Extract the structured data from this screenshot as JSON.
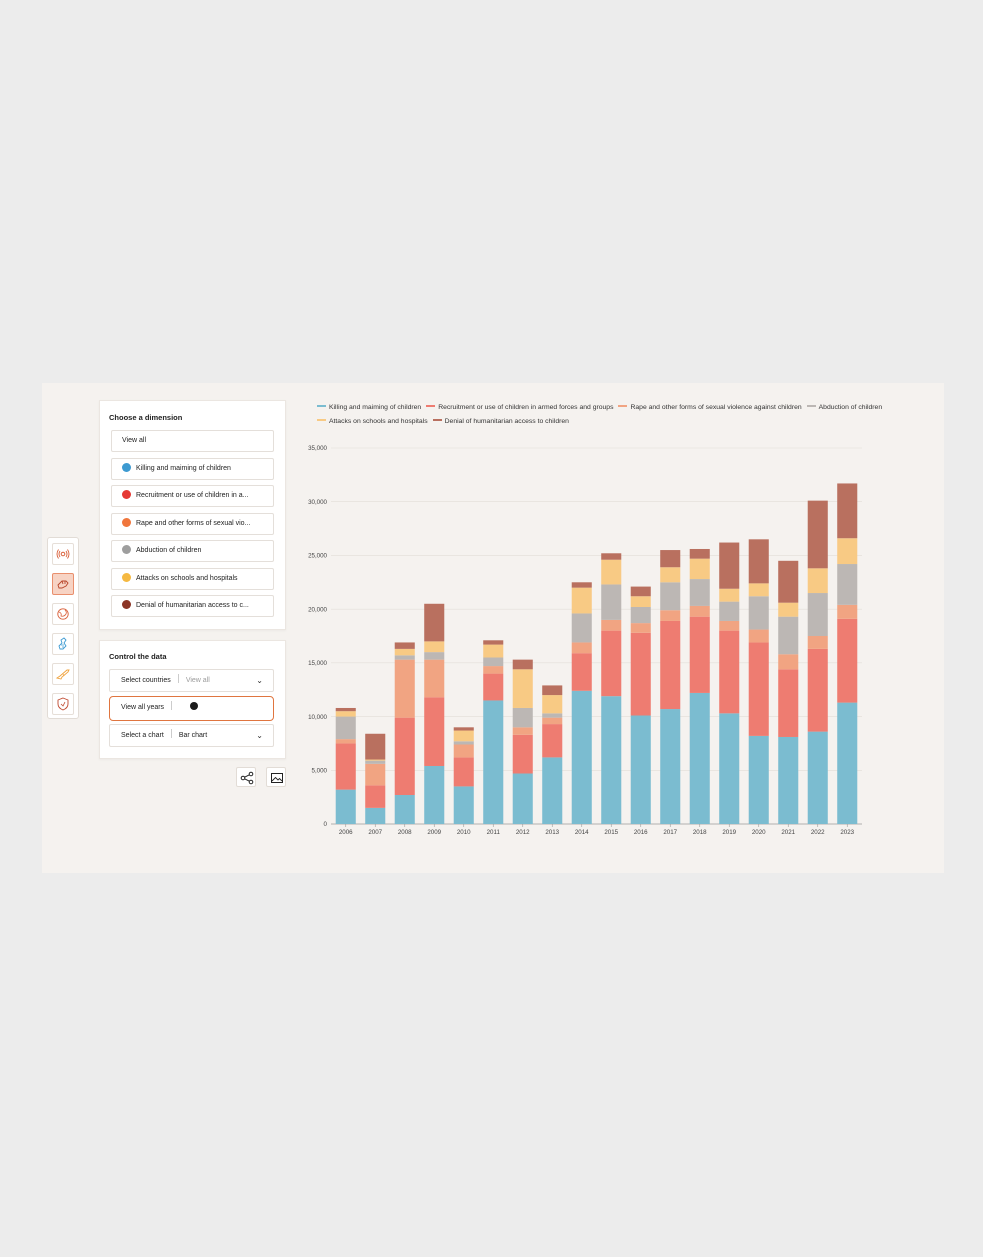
{
  "dimension_panel": {
    "title": "Choose a dimension",
    "options": [
      {
        "label": "View all",
        "color": null
      },
      {
        "label": "Killing and maiming of children",
        "color": "#3d9ad1"
      },
      {
        "label": "Recruitment or use of children in a...",
        "color": "#e53935"
      },
      {
        "label": "Rape and other forms of sexual vio...",
        "color": "#f0763c"
      },
      {
        "label": "Abduction of children",
        "color": "#9e9e9e"
      },
      {
        "label": "Attacks on schools and hospitals",
        "color": "#f5b942"
      },
      {
        "label": "Denial of humanitarian access to c...",
        "color": "#8b3526"
      }
    ]
  },
  "control_panel": {
    "title": "Control the data",
    "select_countries_label": "Select countries",
    "select_countries_value": "View all",
    "view_all_years_label": "View all years",
    "select_chart_label": "Select a chart",
    "select_chart_value": "Bar chart"
  },
  "rail_icons": [
    "signal-icon",
    "hand-icon",
    "globe-icon",
    "bandage-icon",
    "rifle-icon",
    "shield-icon"
  ],
  "chart_data": {
    "type": "bar",
    "stacked": true,
    "legend_placement": "top",
    "grid": true,
    "ylim": [
      0,
      35000
    ],
    "yticks": [
      "0",
      "5,000",
      "10,000",
      "15,000",
      "20,000",
      "25,000",
      "30,000",
      "35,000"
    ],
    "categories": [
      "2006",
      "2007",
      "2008",
      "2009",
      "2010",
      "2011",
      "2012",
      "2013",
      "2014",
      "2015",
      "2016",
      "2017",
      "2018",
      "2019",
      "2020",
      "2021",
      "2022",
      "2023"
    ],
    "series": [
      {
        "name": "Killing and maiming of children",
        "color": "#7bbcd0",
        "values": [
          3200,
          1500,
          2700,
          5400,
          3500,
          11500,
          4700,
          6200,
          12400,
          11900,
          10100,
          10700,
          12200,
          10300,
          8200,
          8100,
          8600,
          11300
        ]
      },
      {
        "name": "Recruitment or use of children in armed forces and groups",
        "color": "#ee7c71",
        "values": [
          4300,
          2100,
          7200,
          6400,
          2700,
          2500,
          3600,
          3100,
          3500,
          6100,
          7700,
          8200,
          7100,
          7700,
          8700,
          6300,
          7700,
          7800
        ]
      },
      {
        "name": "Rape and other forms of sexual violence against children",
        "color": "#f1a482",
        "values": [
          400,
          2000,
          5400,
          3500,
          1200,
          700,
          700,
          600,
          1000,
          1000,
          900,
          1000,
          1000,
          900,
          1200,
          1400,
          1200,
          1300
        ]
      },
      {
        "name": "Abduction of children",
        "color": "#bcb7b4",
        "values": [
          2100,
          300,
          400,
          700,
          300,
          800,
          1800,
          400,
          2700,
          3300,
          1500,
          2600,
          2500,
          1800,
          3100,
          3500,
          4000,
          3800
        ]
      },
      {
        "name": "Attacks on schools and hospitals",
        "color": "#f8ca84",
        "values": [
          500,
          100,
          600,
          1000,
          1000,
          1200,
          3600,
          1700,
          2400,
          2300,
          1000,
          1400,
          1900,
          1200,
          1200,
          1300,
          2300,
          2400
        ]
      },
      {
        "name": "Denial of humanitarian access to children",
        "color": "#b9705f",
        "values": [
          300,
          2400,
          600,
          3500,
          300,
          400,
          900,
          900,
          500,
          600,
          900,
          1600,
          900,
          4300,
          4100,
          3900,
          6300,
          5100
        ]
      }
    ]
  }
}
